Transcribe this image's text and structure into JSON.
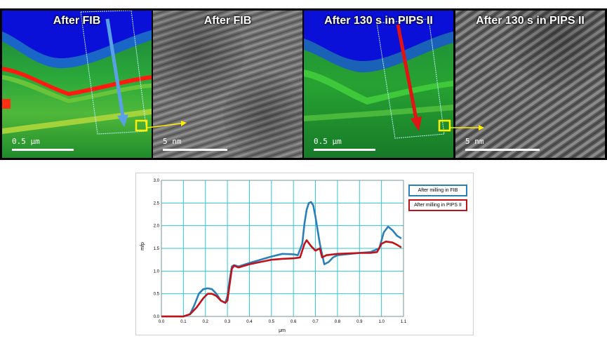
{
  "panels": [
    {
      "title": "After FIB",
      "scale": "0.5 μm"
    },
    {
      "title": "After FIB",
      "scale": "5 nm"
    },
    {
      "title": "After 130 s in PIPS II",
      "scale": "0.5 μm"
    },
    {
      "title": "After 130 s in PIPS II",
      "scale": "5 nm"
    }
  ],
  "colors": {
    "fib": "#2a7fb8",
    "pips": "#c0121a",
    "grid": "#2ec7d6",
    "marker": "#ffee00"
  },
  "chart_data": {
    "type": "line",
    "xlabel": "μm",
    "ylabel": "mfp",
    "xlim": [
      0.0,
      1.1
    ],
    "ylim": [
      0.0,
      3.0
    ],
    "x_ticks": [
      "0.0",
      "0.1",
      "0.2",
      "0.3",
      "0.4",
      "0.5",
      "0.6",
      "0.7",
      "0.8",
      "0.9",
      "1.0",
      "1.1"
    ],
    "y_ticks": [
      "0.0",
      "0.5",
      "1.0",
      "1.5",
      "2.0",
      "2.5",
      "3.0"
    ],
    "grid": true,
    "legend_position": "top-right",
    "series": [
      {
        "name": "After milling in FIB",
        "x": [
          0.0,
          0.1,
          0.13,
          0.15,
          0.17,
          0.19,
          0.21,
          0.23,
          0.25,
          0.27,
          0.29,
          0.3,
          0.31,
          0.32,
          0.33,
          0.35,
          0.4,
          0.45,
          0.5,
          0.55,
          0.6,
          0.62,
          0.64,
          0.65,
          0.66,
          0.67,
          0.68,
          0.69,
          0.7,
          0.72,
          0.74,
          0.76,
          0.78,
          0.8,
          0.9,
          0.95,
          0.99,
          1.01,
          1.03,
          1.05,
          1.07,
          1.09
        ],
        "y": [
          0.0,
          0.0,
          0.05,
          0.25,
          0.5,
          0.6,
          0.62,
          0.6,
          0.5,
          0.35,
          0.3,
          0.45,
          0.8,
          1.1,
          1.13,
          1.1,
          1.18,
          1.25,
          1.32,
          1.38,
          1.37,
          1.35,
          1.6,
          2.05,
          2.35,
          2.5,
          2.52,
          2.45,
          2.2,
          1.6,
          1.15,
          1.2,
          1.3,
          1.35,
          1.4,
          1.42,
          1.5,
          1.85,
          1.98,
          1.9,
          1.78,
          1.72
        ]
      },
      {
        "name": "After milling in PIPS II",
        "x": [
          0.0,
          0.1,
          0.13,
          0.16,
          0.19,
          0.21,
          0.23,
          0.25,
          0.27,
          0.29,
          0.3,
          0.31,
          0.32,
          0.33,
          0.35,
          0.4,
          0.45,
          0.5,
          0.55,
          0.6,
          0.63,
          0.65,
          0.66,
          0.68,
          0.7,
          0.72,
          0.73,
          0.75,
          0.8,
          0.9,
          0.95,
          0.98,
          1.0,
          1.02,
          1.05,
          1.07,
          1.09
        ],
        "y": [
          0.0,
          0.0,
          0.05,
          0.2,
          0.4,
          0.5,
          0.5,
          0.45,
          0.35,
          0.3,
          0.35,
          0.7,
          1.05,
          1.12,
          1.08,
          1.15,
          1.2,
          1.25,
          1.27,
          1.28,
          1.3,
          1.6,
          1.68,
          1.55,
          1.45,
          1.5,
          1.3,
          1.35,
          1.38,
          1.4,
          1.4,
          1.42,
          1.6,
          1.65,
          1.63,
          1.58,
          1.52
        ]
      }
    ]
  }
}
